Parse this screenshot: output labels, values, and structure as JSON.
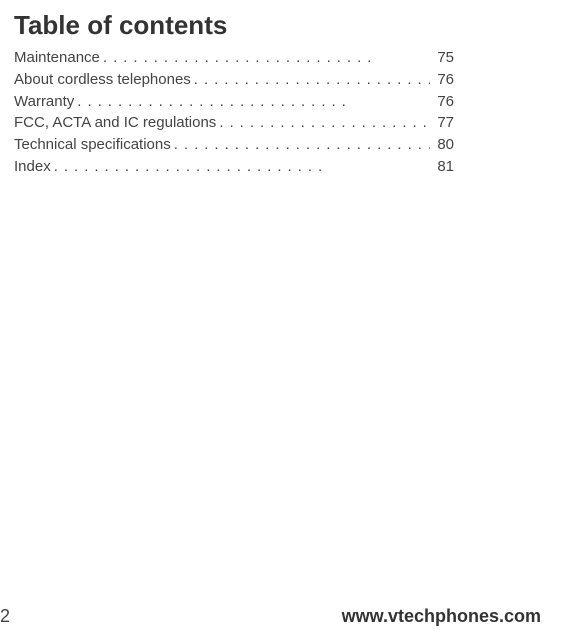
{
  "toc": {
    "title": "Table of contents",
    "entries": [
      {
        "label": "Maintenance ",
        "page": "75"
      },
      {
        "label": "About cordless telephones ",
        "page": "76"
      },
      {
        "label": "Warranty ",
        "page": "76"
      },
      {
        "label": "FCC, ACTA and IC regulations ",
        "page": "77"
      },
      {
        "label": "Technical specifications ",
        "page": "80"
      },
      {
        "label": "Index ",
        "page": "81"
      }
    ]
  },
  "footer": {
    "page_number": "2",
    "url": "www.vtechphones.com"
  },
  "style": {
    "background_color": "#ffffff",
    "title_color": "#333333",
    "text_color": "#444444",
    "title_fontsize": 26,
    "body_fontsize": 15,
    "footer_fontsize": 18
  }
}
